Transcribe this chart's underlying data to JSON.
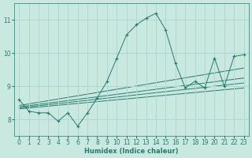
{
  "xlabel": "Humidex (Indice chaleur)",
  "xlim": [
    -0.5,
    23.5
  ],
  "ylim": [
    7.5,
    11.5
  ],
  "yticks": [
    8,
    9,
    10,
    11
  ],
  "xticks": [
    0,
    1,
    2,
    3,
    4,
    5,
    6,
    7,
    8,
    9,
    10,
    11,
    12,
    13,
    14,
    15,
    16,
    17,
    18,
    19,
    20,
    21,
    22,
    23
  ],
  "bg_color": "#c8e8e0",
  "grid_color": "#b0d8d0",
  "line_color": "#2a7a6e",
  "main_series_x": [
    0,
    1,
    2,
    3,
    4,
    5,
    6,
    7,
    8,
    9,
    10,
    11,
    12,
    13,
    14,
    15,
    16,
    17,
    18,
    19,
    20,
    21,
    22,
    23
  ],
  "main_series_y": [
    8.6,
    8.25,
    8.2,
    8.2,
    7.95,
    8.2,
    7.8,
    8.2,
    8.65,
    9.15,
    9.85,
    10.55,
    10.85,
    11.05,
    11.2,
    10.7,
    9.7,
    8.95,
    9.15,
    8.95,
    9.85,
    9.0,
    9.9,
    9.95
  ],
  "line1_x": [
    0,
    23
  ],
  "line1_y": [
    8.42,
    9.55
  ],
  "line2_x": [
    0,
    23
  ],
  "line2_y": [
    8.38,
    9.25
  ],
  "line3_x": [
    0,
    23
  ],
  "line3_y": [
    8.35,
    9.1
  ],
  "line4_x": [
    0,
    23
  ],
  "line4_y": [
    8.32,
    8.95
  ]
}
